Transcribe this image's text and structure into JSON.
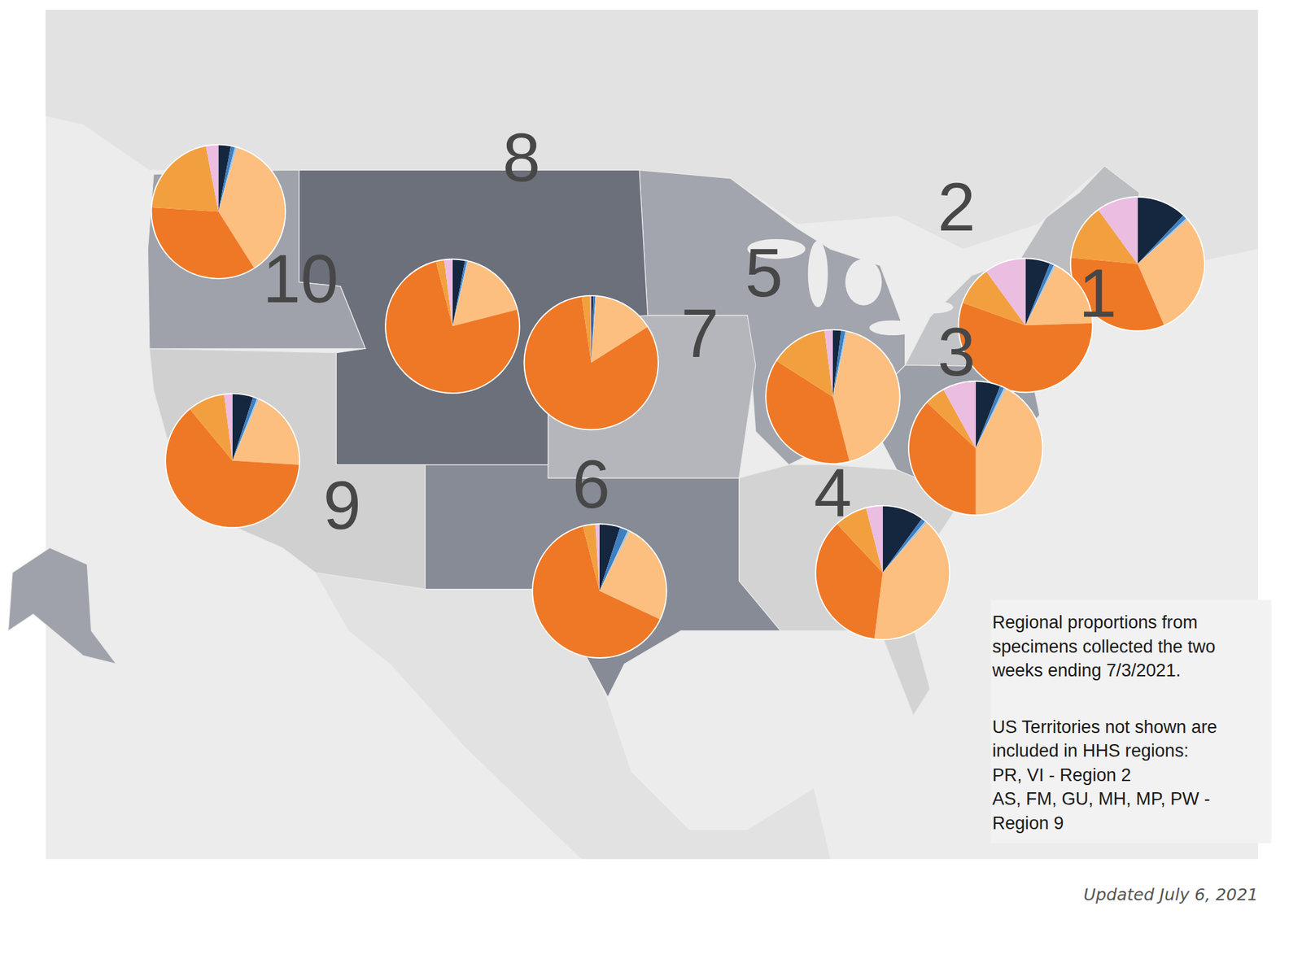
{
  "chart_data": [
    {
      "type": "pie",
      "title": "1",
      "values": [
        12,
        1,
        0.5,
        30,
        33,
        13.5,
        10
      ],
      "colors": [
        "#15263f",
        "#3f7fbf",
        "#a6c8e6",
        "#fdbf7f",
        "#ef7826",
        "#f2a03f",
        "#ebbde0"
      ]
    },
    {
      "type": "pie",
      "title": "2",
      "values": [
        6,
        1,
        0.5,
        17,
        56,
        9.5,
        10
      ],
      "colors": [
        "#15263f",
        "#3f7fbf",
        "#a6c8e6",
        "#fdbf7f",
        "#ef7826",
        "#f2a03f",
        "#ebbde0"
      ]
    },
    {
      "type": "pie",
      "title": "3",
      "values": [
        6,
        1,
        0.5,
        42.5,
        37,
        5,
        8
      ],
      "colors": [
        "#15263f",
        "#3f7fbf",
        "#a6c8e6",
        "#fdbf7f",
        "#ef7826",
        "#f2a03f",
        "#ebbde0"
      ]
    },
    {
      "type": "pie",
      "title": "4",
      "values": [
        10,
        1,
        0.5,
        40.5,
        36,
        8,
        4
      ],
      "colors": [
        "#15263f",
        "#3f7fbf",
        "#a6c8e6",
        "#fdbf7f",
        "#ef7826",
        "#f2a03f",
        "#ebbde0"
      ]
    },
    {
      "type": "pie",
      "title": "5",
      "values": [
        2,
        1,
        0.5,
        42.5,
        38,
        14,
        2
      ],
      "colors": [
        "#15263f",
        "#3f7fbf",
        "#a6c8e6",
        "#fdbf7f",
        "#ef7826",
        "#f2a03f",
        "#ebbde0"
      ]
    },
    {
      "type": "pie",
      "title": "6",
      "values": [
        5,
        2,
        0.5,
        24.5,
        64,
        3,
        1
      ],
      "colors": [
        "#15263f",
        "#3f7fbf",
        "#a6c8e6",
        "#fdbf7f",
        "#ef7826",
        "#f2a03f",
        "#ebbde0"
      ]
    },
    {
      "type": "pie",
      "title": "7",
      "values": [
        0.5,
        0.5,
        0.2,
        14.8,
        81.7,
        2,
        0.3
      ],
      "colors": [
        "#15263f",
        "#3f7fbf",
        "#a6c8e6",
        "#fdbf7f",
        "#ef7826",
        "#f2a03f",
        "#ebbde0"
      ]
    },
    {
      "type": "pie",
      "title": "8",
      "values": [
        3,
        0.5,
        0.3,
        17.2,
        75,
        2,
        2
      ],
      "colors": [
        "#15263f",
        "#3f7fbf",
        "#a6c8e6",
        "#fdbf7f",
        "#ef7826",
        "#f2a03f",
        "#ebbde0"
      ]
    },
    {
      "type": "pie",
      "title": "9",
      "values": [
        5,
        1,
        0.5,
        19.5,
        63,
        9,
        2
      ],
      "colors": [
        "#15263f",
        "#3f7fbf",
        "#a6c8e6",
        "#fdbf7f",
        "#ef7826",
        "#f2a03f",
        "#ebbde0"
      ]
    },
    {
      "type": "pie",
      "title": "10",
      "values": [
        3,
        1,
        0.5,
        36.5,
        35,
        21,
        3
      ],
      "colors": [
        "#15263f",
        "#3f7fbf",
        "#a6c8e6",
        "#fdbf7f",
        "#ef7826",
        "#f2a03f",
        "#ebbde0"
      ]
    }
  ],
  "notes": {
    "paragraphs": [
      [
        "Regional proportions from",
        "specimens collected the two",
        "weeks ending 7/3/2021."
      ],
      [
        "US Territories not shown are",
        "included in HHS regions:",
        "PR, VI - Region 2",
        "AS, FM, GU, MH, MP, PW -",
        "Region 9"
      ]
    ]
  },
  "updated": "Updated July 6, 2021"
}
